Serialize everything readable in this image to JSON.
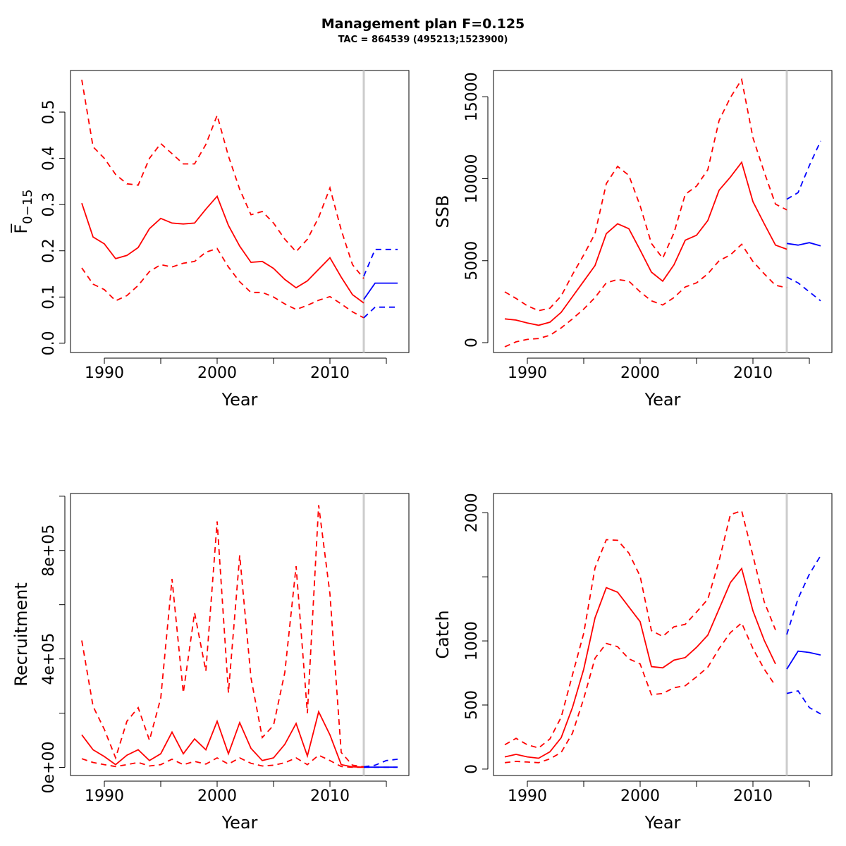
{
  "title": "Management plan F=0.125",
  "subtitle": "TAC = 864539 (495213;1523900)",
  "colors": {
    "historical": "#ff0000",
    "projection": "#0000ff",
    "divider": "#cccccc",
    "axis": "#000000"
  },
  "chart_data": [
    {
      "type": "line",
      "xlabel": "Year",
      "ylabel": "F̅",
      "ylabel_sub": "0−15",
      "xlim": [
        1987,
        2017
      ],
      "ylim": [
        -0.02,
        0.59
      ],
      "x_ticks": [
        1990,
        1995,
        2000,
        2005,
        2010,
        2015
      ],
      "x_tick_labels": [
        "1990",
        "",
        "2000",
        "",
        "2010",
        ""
      ],
      "y_ticks": [
        0.0,
        0.1,
        0.2,
        0.3,
        0.4,
        0.5
      ],
      "y_tick_labels": [
        "0.0",
        "0.1",
        "0.2",
        "0.3",
        "0.4",
        "0.5"
      ],
      "divider_x": 2013,
      "historical": {
        "x": [
          1988,
          1989,
          1990,
          1991,
          1992,
          1993,
          1994,
          1995,
          1996,
          1997,
          1998,
          1999,
          2000,
          2001,
          2002,
          2003,
          2004,
          2005,
          2006,
          2007,
          2008,
          2009,
          2010,
          2011,
          2012,
          2013
        ],
        "mid": [
          0.303,
          0.23,
          0.215,
          0.183,
          0.19,
          0.207,
          0.248,
          0.27,
          0.26,
          0.258,
          0.26,
          0.29,
          0.318,
          0.255,
          0.21,
          0.175,
          0.177,
          0.162,
          0.138,
          0.12,
          0.135,
          0.16,
          0.185,
          0.143,
          0.105,
          0.087
        ],
        "upper": [
          0.57,
          0.425,
          0.4,
          0.365,
          0.345,
          0.342,
          0.4,
          0.432,
          0.41,
          0.388,
          0.388,
          0.43,
          0.493,
          0.405,
          0.333,
          0.278,
          0.285,
          0.26,
          0.225,
          0.198,
          0.225,
          0.272,
          0.336,
          0.245,
          0.17,
          0.14
        ],
        "lower": [
          0.163,
          0.128,
          0.116,
          0.092,
          0.103,
          0.125,
          0.155,
          0.17,
          0.165,
          0.173,
          0.177,
          0.197,
          0.205,
          0.165,
          0.133,
          0.11,
          0.11,
          0.1,
          0.085,
          0.073,
          0.082,
          0.093,
          0.101,
          0.085,
          0.068,
          0.055
        ]
      },
      "projection": {
        "x": [
          2013,
          2014,
          2015,
          2016
        ],
        "mid": [
          0.095,
          0.13,
          0.13,
          0.13
        ],
        "upper": [
          0.145,
          0.203,
          0.203,
          0.203
        ],
        "lower": [
          0.055,
          0.078,
          0.078,
          0.078
        ]
      }
    },
    {
      "type": "line",
      "xlabel": "Year",
      "ylabel": "SSB",
      "xlim": [
        1987,
        2017
      ],
      "ylim": [
        -600,
        16600
      ],
      "x_ticks": [
        1990,
        1995,
        2000,
        2005,
        2010,
        2015
      ],
      "x_tick_labels": [
        "1990",
        "",
        "2000",
        "",
        "2010",
        ""
      ],
      "y_ticks": [
        0,
        5000,
        10000,
        15000
      ],
      "y_tick_labels": [
        "0",
        "5000",
        "10000",
        "15000"
      ],
      "divider_x": 2013,
      "historical": {
        "x": [
          1988,
          1989,
          1990,
          1991,
          1992,
          1993,
          1994,
          1995,
          1996,
          1997,
          1998,
          1999,
          2000,
          2001,
          2002,
          2003,
          2004,
          2005,
          2006,
          2007,
          2008,
          2009,
          2010,
          2011,
          2012,
          2013
        ],
        "mid": [
          1450,
          1380,
          1200,
          1060,
          1250,
          1850,
          2800,
          3750,
          4700,
          6650,
          7250,
          6950,
          5650,
          4300,
          3750,
          4750,
          6250,
          6550,
          7450,
          9300,
          10100,
          11000,
          8600,
          7250,
          5950,
          5700
        ],
        "upper": [
          3100,
          2700,
          2250,
          1950,
          2100,
          2850,
          4150,
          5350,
          6650,
          9700,
          10750,
          10200,
          8350,
          6050,
          5150,
          6700,
          9050,
          9550,
          10550,
          13550,
          14950,
          16050,
          12500,
          10400,
          8450,
          8100
        ],
        "lower": [
          -250,
          50,
          200,
          250,
          450,
          900,
          1450,
          2050,
          2750,
          3650,
          3850,
          3750,
          3100,
          2550,
          2300,
          2750,
          3400,
          3650,
          4200,
          5000,
          5350,
          6000,
          4950,
          4200,
          3500,
          3350
        ]
      },
      "projection": {
        "x": [
          2013,
          2014,
          2015,
          2016
        ],
        "mid": [
          6050,
          5950,
          6100,
          5900
        ],
        "upper": [
          8750,
          9150,
          10800,
          12300
        ],
        "lower": [
          4000,
          3650,
          3100,
          2550
        ]
      }
    },
    {
      "type": "line",
      "xlabel": "Year",
      "ylabel": "Recruitment",
      "xlim": [
        1987,
        2017
      ],
      "ylim": [
        -30000,
        1010000
      ],
      "x_ticks": [
        1990,
        1995,
        2000,
        2005,
        2010,
        2015
      ],
      "x_tick_labels": [
        "1990",
        "",
        "2000",
        "",
        "2010",
        ""
      ],
      "y_ticks": [
        0,
        200000,
        400000,
        600000,
        800000,
        1000000
      ],
      "y_tick_labels": [
        "0e+00",
        "",
        "4e+05",
        "",
        "8e+05",
        ""
      ],
      "divider_x": 2013,
      "historical": {
        "x": [
          1988,
          1989,
          1990,
          1991,
          1992,
          1993,
          1994,
          1995,
          1996,
          1997,
          1998,
          1999,
          2000,
          2001,
          2002,
          2003,
          2004,
          2005,
          2006,
          2007,
          2008,
          2009,
          2010,
          2011,
          2012,
          2013
        ],
        "mid": [
          120000,
          65000,
          40000,
          10000,
          45000,
          65000,
          25000,
          50000,
          130000,
          50000,
          105000,
          65000,
          170000,
          50000,
          165000,
          70000,
          25000,
          35000,
          85000,
          162000,
          42000,
          205000,
          120000,
          10000,
          2000,
          1000
        ],
        "upper": [
          468000,
          225000,
          140000,
          35000,
          170000,
          220000,
          100000,
          255000,
          695000,
          275000,
          570000,
          355000,
          907000,
          275000,
          782000,
          330000,
          110000,
          155000,
          350000,
          742000,
          200000,
          967000,
          640000,
          55000,
          8000,
          2000
        ],
        "lower": [
          32000,
          18000,
          10000,
          3000,
          10000,
          18000,
          5000,
          10000,
          30000,
          10000,
          22000,
          12000,
          35000,
          12000,
          35000,
          15000,
          5000,
          8000,
          17000,
          35000,
          10000,
          45000,
          25000,
          3000,
          500,
          200
        ]
      },
      "projection": {
        "x": [
          2013,
          2014,
          2015,
          2016
        ],
        "mid": [
          1000,
          1000,
          1000,
          1000
        ],
        "upper": [
          2000,
          8000,
          25000,
          30000
        ],
        "lower": [
          500,
          500,
          500,
          500
        ]
      }
    },
    {
      "type": "line",
      "xlabel": "Year",
      "ylabel": "Catch",
      "xlim": [
        1987,
        2017
      ],
      "ylim": [
        -50,
        2150
      ],
      "x_ticks": [
        1990,
        1995,
        2000,
        2005,
        2010,
        2015
      ],
      "x_tick_labels": [
        "1990",
        "",
        "2000",
        "",
        "2010",
        ""
      ],
      "y_ticks": [
        0,
        500,
        1000,
        1500,
        2000
      ],
      "y_tick_labels": [
        "0",
        "500",
        "1000",
        "",
        "2000"
      ],
      "divider_x": 2013,
      "historical": {
        "x": [
          1988,
          1989,
          1990,
          1991,
          1992,
          1993,
          1994,
          1995,
          1996,
          1997,
          1998,
          1999,
          2000,
          2001,
          2002,
          2003,
          2004,
          2005,
          2006,
          2007,
          2008,
          2009,
          2010,
          2011,
          2012
        ],
        "mid": [
          95,
          115,
          95,
          85,
          135,
          245,
          480,
          780,
          1180,
          1415,
          1380,
          1265,
          1150,
          800,
          790,
          850,
          870,
          950,
          1045,
          1250,
          1455,
          1565,
          1235,
          1005,
          820
        ],
        "upper": [
          190,
          240,
          190,
          165,
          235,
          405,
          735,
          1060,
          1570,
          1790,
          1785,
          1685,
          1505,
          1080,
          1035,
          1110,
          1130,
          1225,
          1325,
          1625,
          1985,
          2015,
          1665,
          1305,
          1085
        ],
        "lower": [
          50,
          60,
          55,
          50,
          80,
          130,
          280,
          550,
          865,
          980,
          955,
          860,
          820,
          580,
          590,
          635,
          650,
          720,
          795,
          940,
          1065,
          1140,
          940,
          780,
          650
        ]
      },
      "projection": {
        "x": [
          2013,
          2014,
          2015,
          2016
        ],
        "mid": [
          780,
          920,
          910,
          890
        ],
        "upper": [
          1050,
          1330,
          1520,
          1665
        ],
        "lower": [
          590,
          610,
          480,
          430
        ]
      }
    }
  ]
}
